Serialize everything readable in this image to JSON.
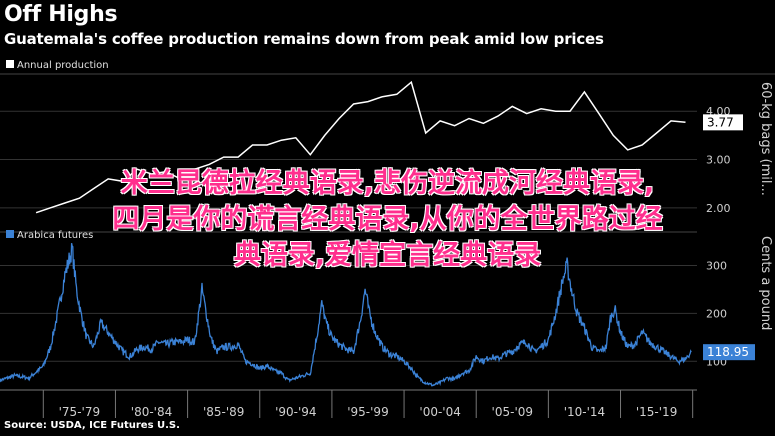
{
  "title": "Off Highs",
  "subtitle": "Guatemala's coffee production remains down from peak amid low prices",
  "source": "Source: USDA, ICE Futures U.S.",
  "overlay_lines": [
    "米兰昆德拉经典语录,悲伤逆流成河经典语录,",
    "四月是你的谎言经典语录,从你的全世界路过经",
    "典语录,爱情宣言经典语录"
  ],
  "colors": {
    "background": "#000000",
    "production_line": "#ffffff",
    "futures_line": "#3b82d6",
    "grid": "#333333",
    "overlay_text": "#ff2f8e"
  },
  "chart_data": [
    {
      "type": "line",
      "legend": "Annual production",
      "legend_position": "top-left",
      "axis_label": "60-kg bags (mil...",
      "y_ticks": [
        "2.00",
        "3.00",
        "4.00"
      ],
      "ylim": [
        1.5,
        4.75
      ],
      "last_value_label": "3.77",
      "x": [
        1974,
        1975,
        1976,
        1977,
        1978,
        1979,
        1980,
        1981,
        1982,
        1983,
        1984,
        1985,
        1986,
        1987,
        1988,
        1989,
        1990,
        1991,
        1992,
        1993,
        1994,
        1995,
        1996,
        1997,
        1998,
        1999,
        2000,
        2001,
        2002,
        2003,
        2004,
        2005,
        2006,
        2007,
        2008,
        2009,
        2010,
        2011,
        2012,
        2013,
        2014,
        2015,
        2016,
        2017,
        2018,
        2019
      ],
      "values": [
        1.9,
        2.0,
        2.1,
        2.2,
        2.4,
        2.6,
        2.55,
        2.8,
        2.7,
        2.75,
        2.6,
        2.8,
        2.9,
        3.05,
        3.05,
        3.3,
        3.3,
        3.4,
        3.45,
        3.1,
        3.5,
        3.85,
        4.15,
        4.2,
        4.3,
        4.35,
        4.6,
        3.55,
        3.8,
        3.7,
        3.85,
        3.75,
        3.9,
        4.1,
        3.95,
        4.05,
        4.0,
        4.0,
        4.4,
        3.95,
        3.5,
        3.2,
        3.3,
        3.55,
        3.8,
        3.77
      ]
    },
    {
      "type": "line",
      "legend": "Arabica futures",
      "legend_position": "top-left",
      "axis_label": "Cents a pound",
      "y_ticks": [
        "100",
        "200",
        "300"
      ],
      "ylim": [
        40,
        370
      ],
      "last_value_label": "118.95",
      "x_ticks": [
        "'75-'79",
        "'80-'84",
        "'85-'89",
        "'90-'94",
        "'95-'99",
        "'00-'04",
        "'05-'09",
        "'10-'14",
        "'15-'19"
      ],
      "x": [
        1972.0,
        1973.0,
        1974.0,
        1975.0,
        1975.5,
        1976.0,
        1976.5,
        1977.0,
        1977.3,
        1977.6,
        1978.0,
        1978.5,
        1979.0,
        1979.5,
        1980.0,
        1980.5,
        1981.0,
        1981.5,
        1982.0,
        1982.5,
        1983.0,
        1983.5,
        1984.0,
        1984.5,
        1985.0,
        1985.5,
        1986.0,
        1986.3,
        1986.6,
        1987.0,
        1987.5,
        1988.0,
        1988.5,
        1989.0,
        1989.5,
        1990.0,
        1990.5,
        1991.0,
        1991.5,
        1992.0,
        1992.5,
        1993.0,
        1993.5,
        1994.0,
        1994.3,
        1994.6,
        1995.0,
        1995.5,
        1996.0,
        1996.5,
        1997.0,
        1997.3,
        1997.6,
        1998.0,
        1998.5,
        1999.0,
        1999.5,
        2000.0,
        2000.5,
        2001.0,
        2001.5,
        2002.0,
        2002.5,
        2003.0,
        2003.5,
        2004.0,
        2004.5,
        2005.0,
        2005.5,
        2006.0,
        2006.5,
        2007.0,
        2007.5,
        2008.0,
        2008.5,
        2009.0,
        2009.5,
        2010.0,
        2010.5,
        2011.0,
        2011.3,
        2011.6,
        2012.0,
        2012.5,
        2013.0,
        2013.5,
        2014.0,
        2014.3,
        2014.6,
        2015.0,
        2015.5,
        2016.0,
        2016.5,
        2017.0,
        2017.5,
        2018.0,
        2018.5,
        2019.0,
        2019.5,
        2019.9
      ],
      "values": [
        60,
        70,
        65,
        90,
        130,
        200,
        280,
        335,
        250,
        200,
        150,
        130,
        180,
        160,
        140,
        120,
        110,
        125,
        130,
        125,
        140,
        135,
        140,
        140,
        145,
        140,
        250,
        200,
        150,
        120,
        130,
        130,
        135,
        100,
        95,
        85,
        90,
        80,
        75,
        60,
        65,
        70,
        75,
        160,
        220,
        180,
        150,
        135,
        125,
        120,
        190,
        250,
        200,
        160,
        130,
        115,
        110,
        100,
        85,
        65,
        55,
        50,
        55,
        65,
        62,
        75,
        80,
        110,
        100,
        110,
        105,
        115,
        120,
        135,
        140,
        120,
        130,
        145,
        200,
        270,
        300,
        250,
        200,
        170,
        130,
        120,
        130,
        190,
        210,
        160,
        130,
        135,
        160,
        140,
        130,
        120,
        110,
        100,
        105,
        119
      ]
    }
  ]
}
